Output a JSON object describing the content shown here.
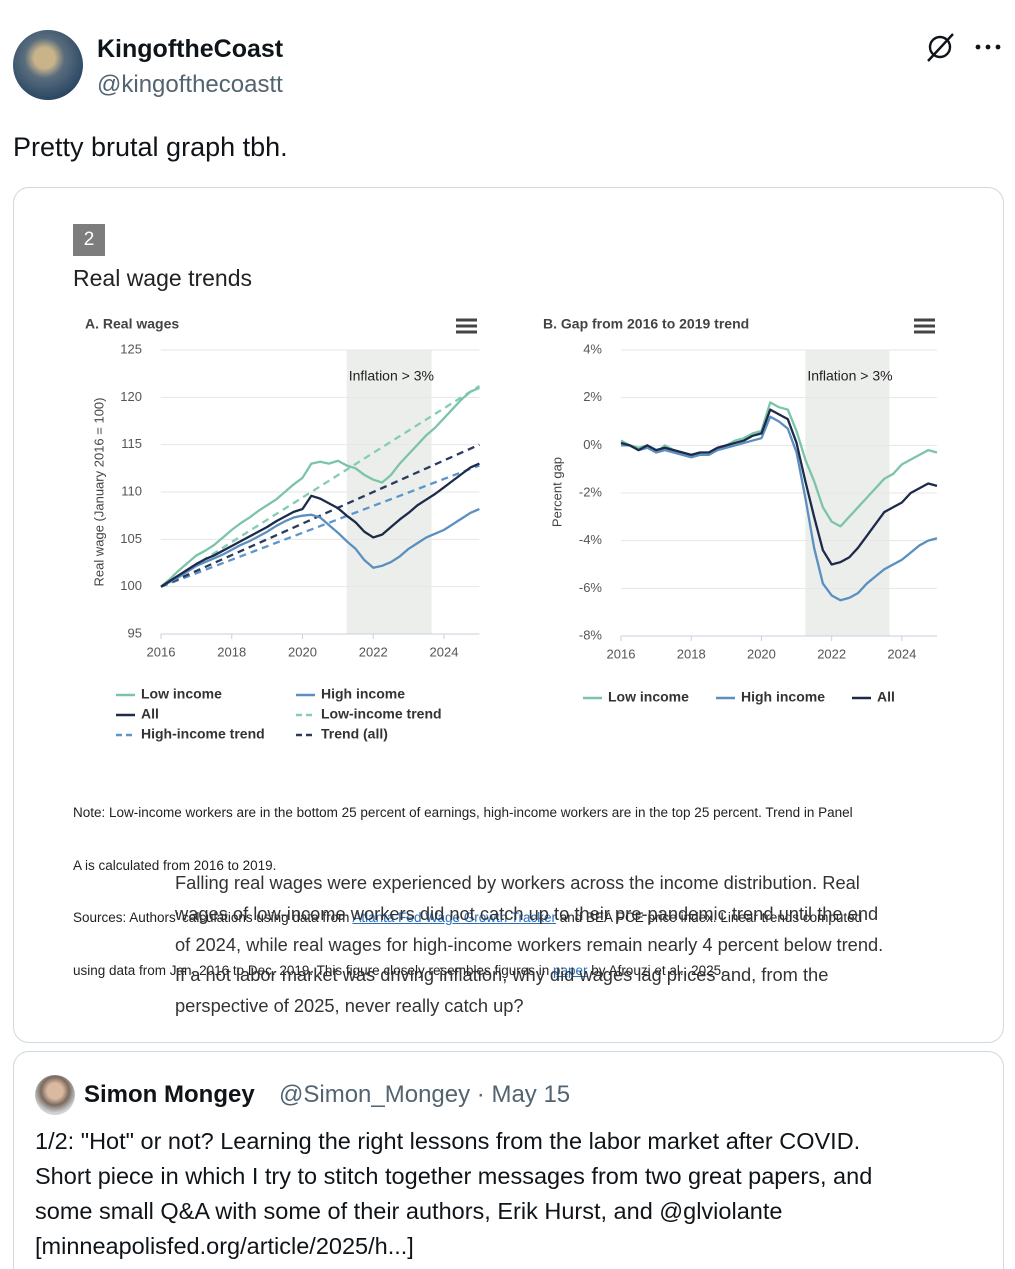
{
  "post": {
    "name": "KingoftheCoast",
    "handle": "@kingofthecoastt",
    "text": "Pretty brutal graph tbh."
  },
  "figure": {
    "number": "2",
    "title": "Real wage trends",
    "note_line1": "Note: Low-income workers are in the bottom 25 percent of earnings, high-income workers are in the top 25 percent. Trend in Panel",
    "note_line2": "A is calculated from 2016 to 2019.",
    "sources_part1": "Sources: Authors’ calculations using data from ",
    "sources_link1": "Atlanta Fed Wage Growth Tracker",
    "sources_part2": " and BEA PCE price index. Linear trends computed",
    "sources_line2": "using data from Jan. 2016 to Dec. 2019. This figure closely resembles figures in ",
    "sources_link2": "paper",
    "sources_part3": " by Afrouzi et al., 2025."
  },
  "chart_data": [
    {
      "type": "line",
      "title": "A. Real wages",
      "y_label": "Real wage (January 2016 = 100)",
      "grid": true,
      "legend": "bottom",
      "xlim": [
        2016,
        2025
      ],
      "xticks": [
        2016,
        2018,
        2020,
        2022,
        2024
      ],
      "ylim": [
        95,
        125
      ],
      "yticks": [
        95,
        100,
        105,
        110,
        115,
        120,
        125
      ],
      "shade": {
        "from": 2021.25,
        "to": 2023.65,
        "label": "Inflation > 3%",
        "color": "#eceeec"
      },
      "x": [
        2016,
        2016.25,
        2016.5,
        2016.75,
        2017,
        2017.25,
        2017.5,
        2017.75,
        2018,
        2018.25,
        2018.5,
        2018.75,
        2019,
        2019.25,
        2019.5,
        2019.75,
        2020,
        2020.25,
        2020.5,
        2020.75,
        2021,
        2021.25,
        2021.5,
        2021.75,
        2022,
        2022.25,
        2022.5,
        2022.75,
        2023,
        2023.25,
        2023.5,
        2023.75,
        2024,
        2024.25,
        2024.5,
        2024.75,
        2025
      ],
      "series": [
        {
          "name": "Low income",
          "color": "#7cc4a8",
          "values": [
            100,
            100.8,
            101.7,
            102.5,
            103.3,
            103.8,
            104.4,
            105.2,
            106,
            106.7,
            107.3,
            108,
            108.6,
            109.2,
            110,
            110.8,
            111.5,
            113,
            113.2,
            113,
            113.3,
            112.8,
            112.5,
            111.8,
            111.3,
            111,
            111.8,
            113,
            114,
            115,
            116,
            116.8,
            117.8,
            118.8,
            119.8,
            120.6,
            121
          ]
        },
        {
          "name": "High income",
          "color": "#5b8fbf",
          "values": [
            100,
            100.5,
            101,
            101.6,
            102.2,
            102.6,
            103,
            103.4,
            103.9,
            104.4,
            104.8,
            105.3,
            105.8,
            106.4,
            106.9,
            107.3,
            107.5,
            107.6,
            107.3,
            106.5,
            105.7,
            104.8,
            104,
            102.8,
            102,
            102.2,
            102.6,
            103.2,
            104,
            104.6,
            105.2,
            105.6,
            106,
            106.6,
            107.2,
            107.8,
            108.2
          ]
        },
        {
          "name": "All",
          "color": "#1e2a4a",
          "values": [
            100,
            100.6,
            101.2,
            101.8,
            102.4,
            102.9,
            103.3,
            103.8,
            104.3,
            104.8,
            105.3,
            105.8,
            106.3,
            106.9,
            107.4,
            107.9,
            108.2,
            109.6,
            109.3,
            108.8,
            108.3,
            107.5,
            106.8,
            105.8,
            105.2,
            105.5,
            106.3,
            107.1,
            107.8,
            108.6,
            109.2,
            109.8,
            110.5,
            111.2,
            111.9,
            112.6,
            113
          ]
        },
        {
          "name": "Low-income trend",
          "color": "#86ccb3",
          "dashed": true,
          "x": [
            2016,
            2025
          ],
          "values": [
            100,
            121.2
          ]
        },
        {
          "name": "High-income trend",
          "color": "#5b95c9",
          "dashed": true,
          "x": [
            2016,
            2025
          ],
          "values": [
            100,
            112.8
          ]
        },
        {
          "name": "Trend (all)",
          "color": "#2a3a5f",
          "dashed": true,
          "x": [
            2016,
            2025
          ],
          "values": [
            100,
            115
          ]
        }
      ]
    },
    {
      "type": "line",
      "title": "B. Gap from 2016 to 2019 trend",
      "y_label": "Percent gap",
      "grid": true,
      "legend": "bottom",
      "xlim": [
        2016,
        2025
      ],
      "xticks": [
        2016,
        2018,
        2020,
        2022,
        2024
      ],
      "ylim": [
        -8,
        4
      ],
      "yticks": [
        {
          "value": -8,
          "label": "-8%"
        },
        {
          "value": -6,
          "label": "-6%"
        },
        {
          "value": -4,
          "label": "-4%"
        },
        {
          "value": -2,
          "label": "-2%"
        },
        {
          "value": 0,
          "label": "0%"
        },
        {
          "value": 2,
          "label": "2%"
        },
        {
          "value": 4,
          "label": "4%"
        }
      ],
      "shade": {
        "from": 2021.25,
        "to": 2023.65,
        "label": "Inflation > 3%",
        "color": "#eceeec"
      },
      "x": [
        2016,
        2016.25,
        2016.5,
        2016.75,
        2017,
        2017.25,
        2017.5,
        2017.75,
        2018,
        2018.25,
        2018.5,
        2018.75,
        2019,
        2019.25,
        2019.5,
        2019.75,
        2020,
        2020.25,
        2020.5,
        2020.75,
        2021,
        2021.25,
        2021.5,
        2021.75,
        2022,
        2022.25,
        2022.5,
        2022.75,
        2023,
        2023.25,
        2023.5,
        2023.75,
        2024,
        2024.25,
        2024.5,
        2024.75,
        2025
      ],
      "series": [
        {
          "name": "Low income",
          "color": "#7cc4a8",
          "values": [
            0.2,
            0,
            -0.1,
            0,
            -0.3,
            0,
            -0.2,
            -0.3,
            -0.4,
            -0.3,
            -0.3,
            -0.1,
            0,
            0.2,
            0.3,
            0.5,
            0.6,
            1.8,
            1.6,
            1.5,
            0.6,
            -0.6,
            -1.5,
            -2.6,
            -3.2,
            -3.4,
            -3,
            -2.6,
            -2.2,
            -1.8,
            -1.4,
            -1.2,
            -0.8,
            -0.6,
            -0.4,
            -0.2,
            -0.3
          ]
        },
        {
          "name": "High income",
          "color": "#5b8fbf",
          "values": [
            0,
            0,
            -0.2,
            -0.1,
            -0.3,
            -0.2,
            -0.3,
            -0.4,
            -0.5,
            -0.4,
            -0.4,
            -0.2,
            -0.1,
            0,
            0.1,
            0.2,
            0.3,
            1.2,
            1,
            0.7,
            -0.3,
            -2.2,
            -4.3,
            -5.8,
            -6.3,
            -6.5,
            -6.4,
            -6.2,
            -5.8,
            -5.5,
            -5.2,
            -5,
            -4.8,
            -4.5,
            -4.2,
            -4,
            -3.9
          ]
        },
        {
          "name": "All",
          "color": "#1e2a4a",
          "values": [
            0.1,
            0,
            -0.2,
            0,
            -0.2,
            -0.1,
            -0.2,
            -0.3,
            -0.4,
            -0.3,
            -0.3,
            -0.1,
            0,
            0.1,
            0.2,
            0.4,
            0.5,
            1.5,
            1.3,
            1.1,
            0.1,
            -1.5,
            -3,
            -4.4,
            -5,
            -4.9,
            -4.7,
            -4.3,
            -3.8,
            -3.3,
            -2.8,
            -2.6,
            -2.4,
            -2,
            -1.8,
            -1.6,
            -1.7
          ]
        }
      ]
    }
  ],
  "article_lines": [
    "Falling real wages were experienced by workers across the income distribution. Real",
    "wages of low-income workers did not catch up to their pre-pandemic trend until the end",
    "of 2024, while real wages for high-income workers remain nearly 4 percent below trend.",
    "If a hot labor market was driving inflation, why did wages lag prices and, from the",
    "perspective of 2025, never really catch up?"
  ],
  "quote": {
    "name": "Simon Mongey",
    "meta": "@Simon_Mongey · May 15",
    "lines": [
      "1/2: \"Hot\" or not? Learning the right lessons from the labor market after COVID.",
      "Short piece in which I try to stitch together messages from two great papers, and",
      "some small Q&A with some of their authors, Erik Hurst, and @glviolante",
      "[minneapolisfed.org/article/2025/h...]"
    ]
  }
}
